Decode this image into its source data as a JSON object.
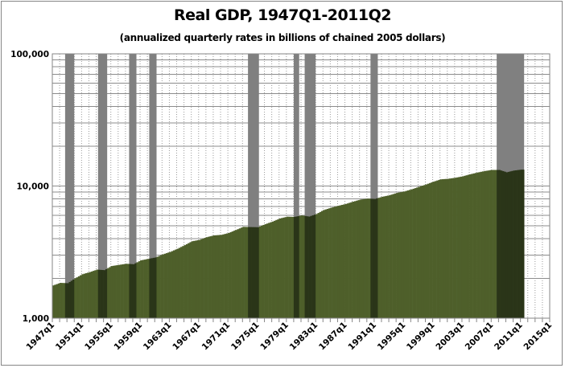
{
  "chart_data": {
    "type": "bar",
    "title": "Real GDP, 1947Q1-2011Q2",
    "subtitle": "(annualized quarterly rates in billions of chained 2005 dollars)",
    "xlabel": "",
    "ylabel": "",
    "yscale": "log",
    "ylim": [
      1000,
      100000
    ],
    "y_tick_labels": [
      "1,000",
      "10,000",
      "100,000"
    ],
    "y_tick_values": [
      1000,
      10000,
      100000
    ],
    "xlim": [
      1947,
      2016
    ],
    "x_tick_labels": [
      "1947q1",
      "1951q1",
      "1955q1",
      "1959q1",
      "1963q1",
      "1967q1",
      "1971q1",
      "1975q1",
      "1979q1",
      "1983q1",
      "1987q1",
      "1991q1",
      "1995q1",
      "1999q1",
      "2003q1",
      "2007q1",
      "2011q1",
      "2015q1"
    ],
    "grid": true,
    "colors": {
      "expansion": "#4e5f2a",
      "recession_bar": "#2a3518",
      "recession_band": "#808080"
    },
    "years": [
      1947,
      1948,
      1949,
      1950,
      1951,
      1952,
      1953,
      1954,
      1955,
      1956,
      1957,
      1958,
      1959,
      1960,
      1961,
      1962,
      1963,
      1964,
      1965,
      1966,
      1967,
      1968,
      1969,
      1970,
      1971,
      1972,
      1973,
      1974,
      1975,
      1976,
      1977,
      1978,
      1979,
      1980,
      1981,
      1982,
      1983,
      1984,
      1985,
      1986,
      1987,
      1988,
      1989,
      1990,
      1991,
      1992,
      1993,
      1994,
      1995,
      1996,
      1997,
      1998,
      1999,
      2000,
      2001,
      2002,
      2003,
      2004,
      2005,
      2006,
      2007,
      2008,
      2009,
      2010,
      2011
    ],
    "values": [
      1770,
      1850,
      1840,
      2000,
      2150,
      2230,
      2330,
      2310,
      2480,
      2530,
      2580,
      2560,
      2740,
      2810,
      2880,
      3040,
      3170,
      3350,
      3570,
      3820,
      3910,
      4100,
      4230,
      4270,
      4410,
      4650,
      4910,
      4890,
      4880,
      5140,
      5380,
      5680,
      5860,
      5840,
      5990,
      5870,
      6140,
      6580,
      6850,
      7090,
      7310,
      7610,
      7890,
      8030,
      7990,
      8290,
      8520,
      8870,
      9090,
      9430,
      9850,
      10280,
      10780,
      11230,
      11340,
      11550,
      11840,
      12260,
      12640,
      12980,
      13230,
      13230,
      12700,
      13090,
      13300
    ],
    "data_end": 2011.5,
    "recessions": [
      [
        1948.75,
        1950.0
      ],
      [
        1953.25,
        1954.5
      ],
      [
        1957.5,
        1958.5
      ],
      [
        1960.25,
        1961.25
      ],
      [
        1973.75,
        1975.25
      ],
      [
        1980.0,
        1980.75
      ],
      [
        1981.5,
        1983.0
      ],
      [
        1990.5,
        1991.5
      ],
      [
        2007.75,
        2011.5
      ]
    ]
  }
}
